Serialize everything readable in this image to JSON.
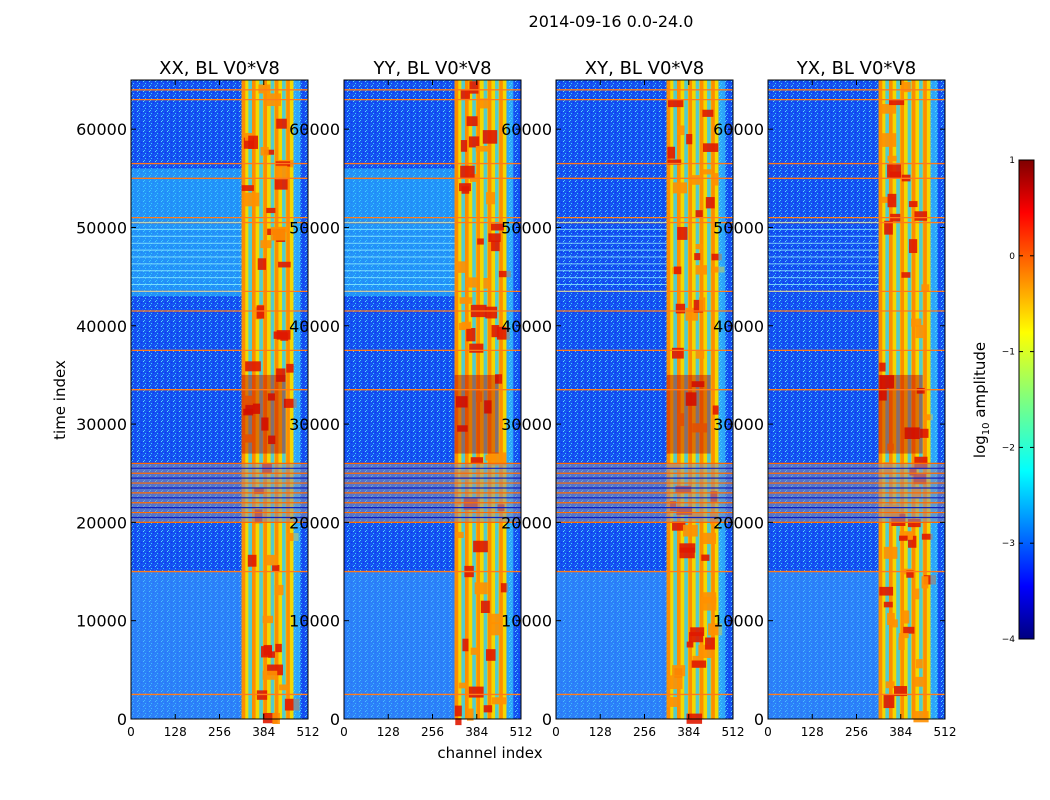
{
  "figure": {
    "suptitle": "2014-09-16 0.0-24.0"
  },
  "chart_data": {
    "type": "heatmap",
    "title": "2014-09-16 0.0-24.0",
    "xlabel": "channel index",
    "ylabel": "time index",
    "xlim": [
      0,
      512
    ],
    "ylim": [
      0,
      65000
    ],
    "x_ticks": [
      "0",
      "128",
      "256",
      "384",
      "512"
    ],
    "y_ticks": [
      "0",
      "10000",
      "20000",
      "30000",
      "40000",
      "50000",
      "60000"
    ],
    "panels": [
      {
        "title": "XX, BL V0*V8",
        "key": "xx"
      },
      {
        "title": "YY, BL V0*V8",
        "key": "yy"
      },
      {
        "title": "XY, BL V0*V8",
        "key": "xy"
      },
      {
        "title": "YX, BL V0*V8",
        "key": "yx"
      }
    ],
    "colorbar": {
      "label": "log10 amplitude",
      "label_main": "log",
      "label_sub": "10",
      "label_tail": " amplitude",
      "range": [
        -4,
        1
      ],
      "ticks": [
        "1",
        "0",
        "−1",
        "−2",
        "−3",
        "−4"
      ]
    },
    "bright_channel_band": [
      320,
      470
    ],
    "rfi_time_band": [
      20000,
      26000
    ],
    "rfi_time_lines": [
      2500,
      15000,
      33500,
      37500,
      41500,
      43500,
      50500,
      51000,
      55000,
      56500,
      63000,
      64000
    ]
  }
}
